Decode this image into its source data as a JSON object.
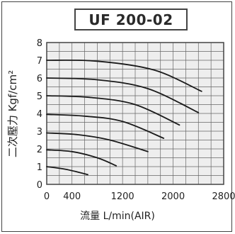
{
  "chart_data": {
    "type": "line",
    "title": "UF 200-02",
    "xlabel": "流量 L/min(AIR)",
    "ylabel": "二次壓力 Kgf/cm²",
    "xlim": [
      0,
      2800
    ],
    "ylim": [
      0,
      8
    ],
    "x_ticks": [
      "0",
      "400",
      "1200",
      "2000",
      "2800"
    ],
    "x_tick_values": [
      0,
      400,
      1200,
      2000,
      2800
    ],
    "y_ticks": [
      "0",
      "1",
      "2",
      "3",
      "4",
      "5",
      "6",
      "7",
      "8"
    ],
    "y_tick_values": [
      0,
      1,
      2,
      3,
      4,
      5,
      6,
      7,
      8
    ],
    "grid": true,
    "line_color": "#1a1a1a",
    "grid_color": "#666666",
    "plot_background": "#eeeeee",
    "series": [
      {
        "points": [
          [
            0,
            1.0
          ],
          [
            300,
            0.85
          ],
          [
            650,
            0.55
          ]
        ]
      },
      {
        "points": [
          [
            0,
            1.95
          ],
          [
            400,
            1.85
          ],
          [
            800,
            1.5
          ],
          [
            1100,
            1.05
          ]
        ]
      },
      {
        "points": [
          [
            0,
            2.9
          ],
          [
            500,
            2.8
          ],
          [
            1000,
            2.5
          ],
          [
            1600,
            1.85
          ]
        ]
      },
      {
        "points": [
          [
            0,
            3.95
          ],
          [
            600,
            3.85
          ],
          [
            1200,
            3.55
          ],
          [
            1850,
            2.6
          ]
        ]
      },
      {
        "points": [
          [
            0,
            5.0
          ],
          [
            700,
            4.9
          ],
          [
            1400,
            4.5
          ],
          [
            2100,
            3.35
          ]
        ]
      },
      {
        "points": [
          [
            0,
            6.0
          ],
          [
            800,
            5.9
          ],
          [
            1600,
            5.4
          ],
          [
            2400,
            4.05
          ]
        ]
      },
      {
        "points": [
          [
            0,
            7.0
          ],
          [
            800,
            6.95
          ],
          [
            1700,
            6.45
          ],
          [
            2450,
            5.25
          ]
        ]
      }
    ]
  }
}
